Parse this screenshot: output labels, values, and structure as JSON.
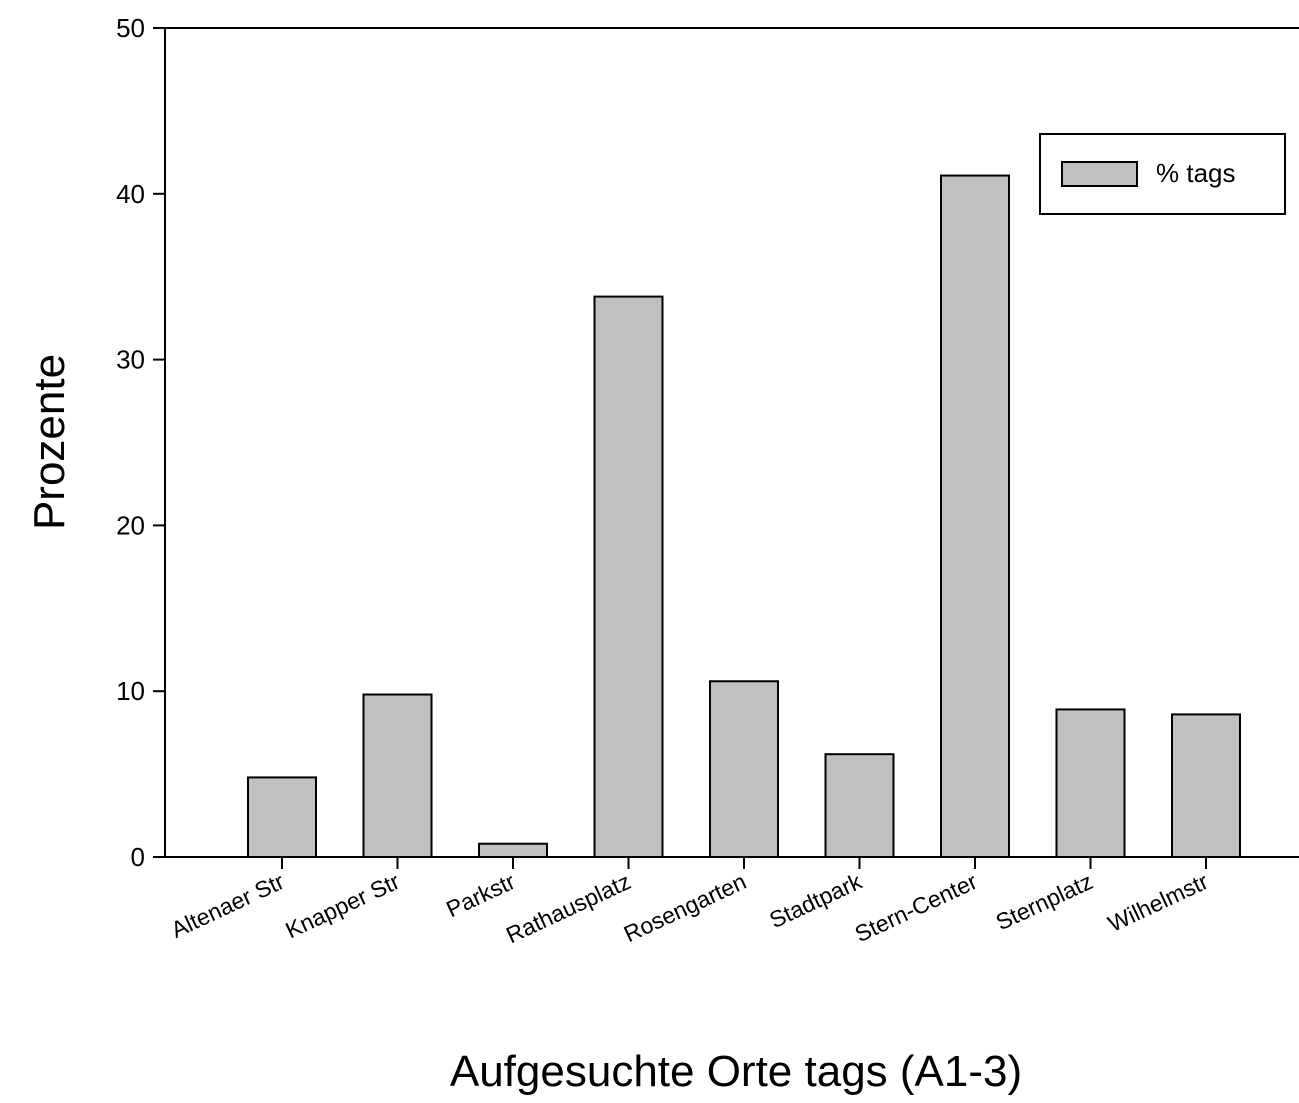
{
  "chart_data": {
    "type": "bar",
    "title": "",
    "xlabel": "Aufgesuchte Orte tags (A1-3)",
    "ylabel": "Prozente",
    "ylim": [
      0,
      50
    ],
    "yticks": [
      "0",
      "10",
      "20",
      "30",
      "40",
      "50"
    ],
    "categories": [
      "Altenaer Str",
      "Knapper Str",
      "Parkstr",
      "Rathausplatz",
      "Rosengarten",
      "Stadtpark",
      "Stern-Center",
      "Sternplatz",
      "Wilhelmstr"
    ],
    "series": [
      {
        "name": "% tags",
        "values": [
          4.8,
          9.8,
          0.8,
          33.8,
          10.6,
          6.2,
          41.1,
          8.9,
          8.6
        ],
        "color": "#c0c0c0"
      }
    ],
    "legend": {
      "position": "top-right",
      "label": "% tags"
    },
    "grid": false
  }
}
